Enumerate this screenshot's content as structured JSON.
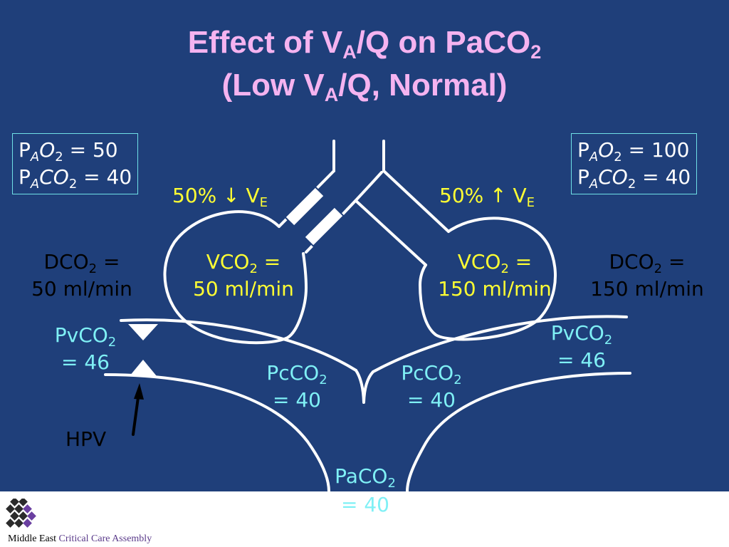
{
  "title": {
    "line1_a": "Effect of V",
    "line1_sub_a": "A",
    "line1_b": "/Q on PaCO",
    "line1_sub_b": "2",
    "line2_a": "(Low V",
    "line2_sub_a": "A",
    "line2_b": "/Q, Normal)"
  },
  "left_box": {
    "line1": {
      "p": "P",
      "sub": "A",
      "gas": "O",
      "sub2": "2",
      "value": " = 50"
    },
    "line2": {
      "p": "P",
      "sub": "A",
      "gas": "CO",
      "sub2": "2",
      "value": " = 40"
    }
  },
  "right_box": {
    "line1": {
      "p": "P",
      "sub": "A",
      "gas": "O",
      "sub2": "2",
      "value": " = 100"
    },
    "line2": {
      "p": "P",
      "sub": "A",
      "gas": "CO",
      "sub2": "2",
      "value": " = 40"
    }
  },
  "left_ve": {
    "text": "50% ↓ V",
    "sub": "E"
  },
  "right_ve": {
    "text": "50% ↑ V",
    "sub": "E"
  },
  "left_vco2": {
    "label": "VCO",
    "sub": "2",
    "eq": " =",
    "value": "50 ml/min"
  },
  "right_vco2": {
    "label": "VCO",
    "sub": "2",
    "eq": " =",
    "value": "150 ml/min"
  },
  "left_dco2": {
    "label": "DCO",
    "sub": "2",
    "eq": " =",
    "value": "50 ml/min"
  },
  "right_dco2": {
    "label": "DCO",
    "sub": "2",
    "eq": " =",
    "value": "150 ml/min"
  },
  "left_pvco2": {
    "label": "PvCO",
    "sub": "2",
    "value": "= 46"
  },
  "right_pvco2": {
    "label": "PvCO",
    "sub": "2",
    "value": "= 46"
  },
  "left_pcco2": {
    "label": "PcCO",
    "sub": "2",
    "value": "= 40"
  },
  "right_pcco2": {
    "label": "PcCO",
    "sub": "2",
    "value": "= 40"
  },
  "paco2": {
    "label": "PaCO",
    "sub": "2",
    "value": "= 40"
  },
  "hpv_label": "HPV",
  "footer": {
    "org": "Middle East",
    "name": "Critical Care Assembly"
  },
  "colors": {
    "background": "#1f3f7a",
    "title": "#f5b3f0",
    "ventilation_labels": "#ffff33",
    "blood_labels": "#7ff0f5",
    "box_border": "#6fe0e6",
    "lines": "#ffffff"
  }
}
